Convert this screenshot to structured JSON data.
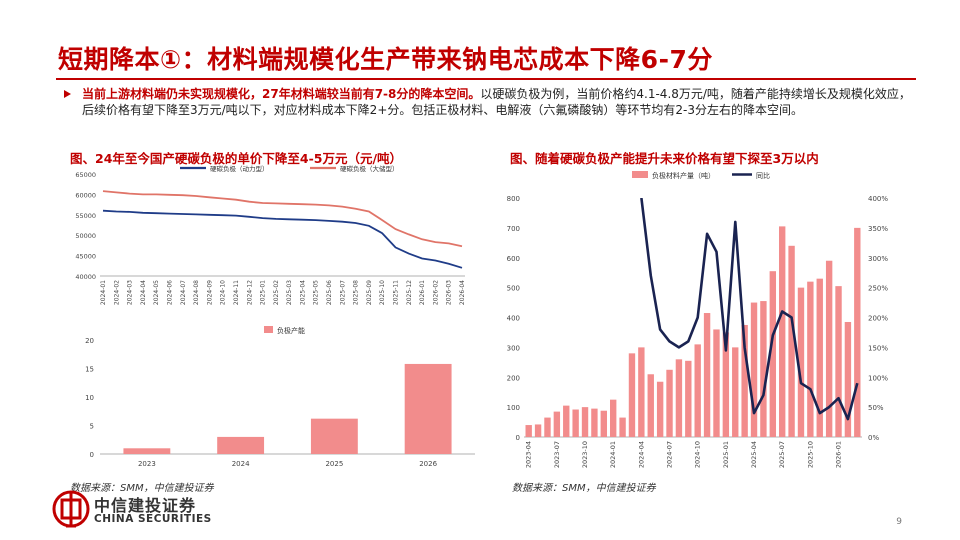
{
  "title": "短期降本①：材料端规模化生产带来钠电芯成本下降6-7分",
  "bullet": {
    "highlight": "当前上游材料端仍未实现规模化，27年材料端较当前有7-8分的降本空间。",
    "text": "以硬碳负极为例，当前价格约4.1-4.8万元/吨，随着产能持续增长及规模化效应，后续价格有望下降至3万元/吨以下，对应材料成本下降2+分。包括正极材料、电解液（六氟磷酸钠）等环节均有2-3分左右的降本空间。"
  },
  "source_left": "数据来源：SMM，中信建投证券",
  "source_right": "数据来源：SMM，中信建投证券",
  "logo": {
    "name": "中信建投证券",
    "en": "CHINA SECURITIES"
  },
  "page_number": "9",
  "colors": {
    "accent": "#C00000",
    "navy": "#1F3C88",
    "salmon": "#E07468",
    "pink": "#F28C8C"
  },
  "chart_data": [
    {
      "type": "line",
      "title": "图、24年至今国产硬碳负极的单价下降至4-5万元（元/吨）",
      "x": [
        "2024-01",
        "2024-02",
        "2024-03",
        "2024-04",
        "2024-05",
        "2024-06",
        "2024-07",
        "2024-08",
        "2024-09",
        "2024-10",
        "2024-11",
        "2024-12",
        "2025-01",
        "2025-02",
        "2025-03",
        "2025-04",
        "2025-05",
        "2025-06",
        "2025-07",
        "2025-08",
        "2025-09",
        "2025-10",
        "2025-11",
        "2025-12",
        "2026-01",
        "2026-02",
        "2026-03",
        "2026-04"
      ],
      "ylim": [
        40000,
        65000
      ],
      "yticks": [
        40000,
        45000,
        50000,
        55000,
        60000,
        65000
      ],
      "ytick_labels": [
        "40000",
        "45000",
        "50000",
        "55000",
        "60000",
        "65000"
      ],
      "legend_position": "top",
      "grid": false,
      "series": [
        {
          "name": "硬碳负极（动力型）",
          "color": "#1F3C88",
          "values": [
            56000,
            55800,
            55700,
            55500,
            55400,
            55300,
            55200,
            55100,
            55000,
            54900,
            54800,
            54500,
            54200,
            54000,
            53900,
            53800,
            53700,
            53500,
            53300,
            53000,
            52300,
            50500,
            47000,
            45500,
            44300,
            43800,
            43000,
            42000
          ]
        },
        {
          "name": "硬碳负极（大储型）",
          "color": "#E07468",
          "values": [
            60800,
            60500,
            60200,
            60000,
            60000,
            59900,
            59800,
            59600,
            59300,
            59000,
            58700,
            58200,
            57900,
            57800,
            57700,
            57600,
            57500,
            57300,
            57000,
            56500,
            55800,
            53700,
            51500,
            50200,
            49000,
            48300,
            48000,
            47300
          ]
        }
      ]
    },
    {
      "type": "bar",
      "title": "",
      "categories": [
        "2023",
        "2024",
        "2025",
        "2026"
      ],
      "ylim": [
        0,
        20
      ],
      "yticks": [
        0,
        5,
        10,
        15,
        20
      ],
      "ytick_labels": [
        "0",
        "5",
        "10",
        "15",
        "20"
      ],
      "legend_position": "top",
      "grid": false,
      "series": [
        {
          "name": "负极产能",
          "color": "#F28C8C",
          "values": [
            1.0,
            3.0,
            6.2,
            15.8
          ]
        }
      ]
    },
    {
      "type": "bar",
      "title": "图、随着硬碳负极产能提升未来价格有望下探至3万以内",
      "x": [
        "2023-04",
        "2023-05",
        "2023-06",
        "2023-07",
        "2023-08",
        "2023-09",
        "2023-10",
        "2023-11",
        "2023-12",
        "2024-01",
        "2024-02",
        "2024-03",
        "2024-04",
        "2024-05",
        "2024-06",
        "2024-07",
        "2024-08",
        "2024-09",
        "2024-10",
        "2024-11",
        "2024-12",
        "2025-01",
        "2025-02",
        "2025-03",
        "2025-04",
        "2025-05",
        "2025-06",
        "2025-07",
        "2025-08",
        "2025-09",
        "2025-10",
        "2025-11",
        "2025-12",
        "2026-01",
        "2026-02",
        "2026-03"
      ],
      "xtick_labels": [
        "2023-04",
        "2023-07",
        "2023-10",
        "2024-01",
        "2024-04",
        "2024-07",
        "2024-10",
        "2025-01",
        "2025-04",
        "2025-07",
        "2025-10",
        "2026-01"
      ],
      "ylim": [
        0,
        800
      ],
      "yticks": [
        0,
        100,
        200,
        300,
        400,
        500,
        600,
        700,
        800
      ],
      "ytick_labels": [
        "0",
        "100",
        "200",
        "300",
        "400",
        "500",
        "600",
        "700",
        "800"
      ],
      "y2lim": [
        0,
        400
      ],
      "y2ticks": [
        0,
        50,
        100,
        150,
        200,
        250,
        300,
        350,
        400
      ],
      "y2tick_labels": [
        "0%",
        "50%",
        "100%",
        "150%",
        "200%",
        "250%",
        "300%",
        "350%",
        "400%"
      ],
      "legend_position": "top",
      "grid": false,
      "series": [
        {
          "name": "负极材料产量（吨）",
          "type": "bar",
          "axis": "left",
          "color": "#F28C8C",
          "values": [
            40,
            42,
            65,
            85,
            105,
            92,
            100,
            95,
            88,
            125,
            65,
            280,
            300,
            210,
            185,
            225,
            260,
            255,
            310,
            415,
            360,
            350,
            300,
            375,
            450,
            455,
            555,
            705,
            640,
            500,
            520,
            530,
            590,
            505,
            385,
            700
          ]
        },
        {
          "name": "同比",
          "type": "line",
          "axis": "right",
          "color": "#1A2351",
          "values": [
            null,
            null,
            null,
            null,
            null,
            null,
            null,
            null,
            null,
            null,
            null,
            null,
            400,
            270,
            180,
            160,
            150,
            160,
            200,
            340,
            310,
            145,
            360,
            150,
            40,
            70,
            170,
            210,
            200,
            90,
            80,
            40,
            50,
            65,
            30,
            90
          ]
        }
      ]
    }
  ]
}
